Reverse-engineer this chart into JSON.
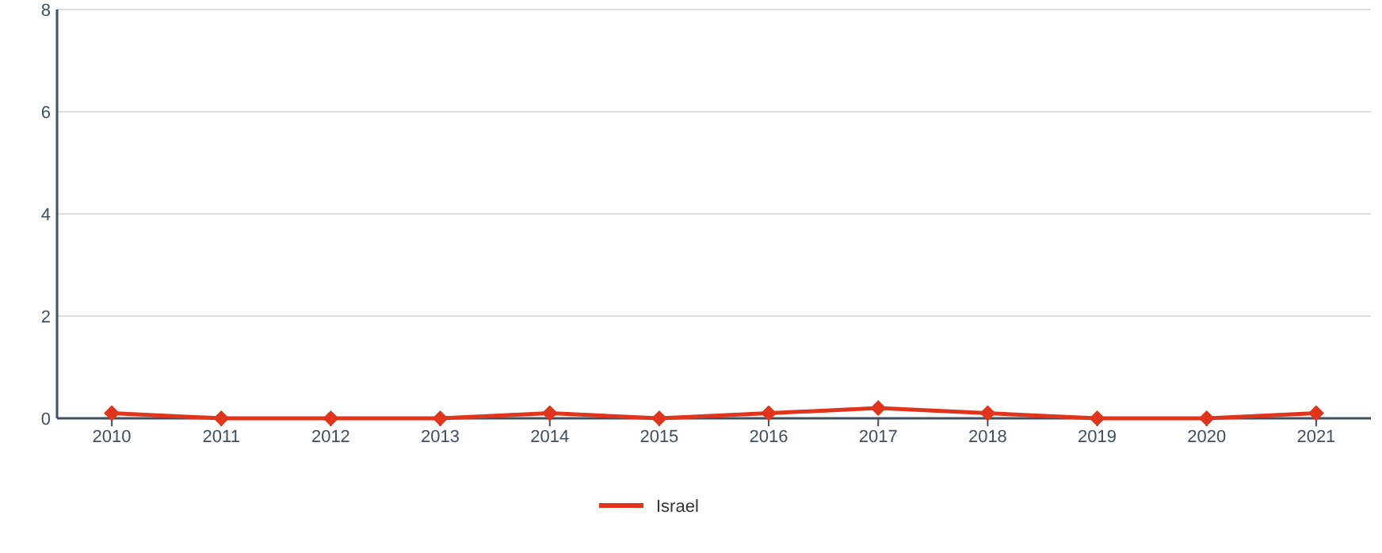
{
  "chart_data": {
    "type": "line",
    "categories": [
      "2010",
      "2011",
      "2012",
      "2013",
      "2014",
      "2015",
      "2016",
      "2017",
      "2018",
      "2019",
      "2020",
      "2021"
    ],
    "series": [
      {
        "name": "Israel",
        "color": "#e0341c",
        "values": [
          0.1,
          0,
          0,
          0,
          0.1,
          0,
          0.1,
          0.2,
          0.1,
          0,
          0,
          0.1
        ]
      }
    ],
    "ylim": [
      0,
      8
    ],
    "yticks": [
      0,
      2,
      4,
      6,
      8
    ],
    "grid": "y",
    "legend": "bottom",
    "marker": "diamond",
    "line_style": "solid"
  }
}
